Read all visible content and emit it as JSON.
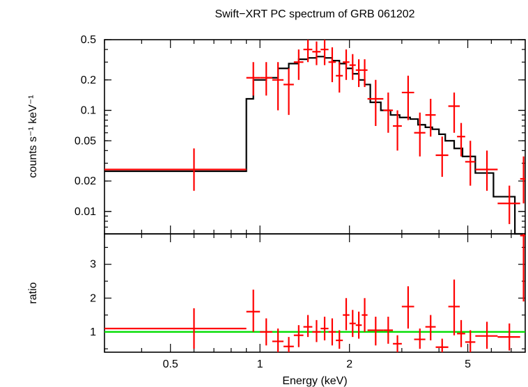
{
  "chart_data": [
    {
      "type": "scatter",
      "title": "Swift−XRT PC spectrum of GRB 061202",
      "ylabel": "counts s⁻¹ keV⁻¹",
      "xlabel": "",
      "x_scale": "log",
      "y_scale": "log",
      "xlim": [
        0.3,
        7.8
      ],
      "ylim": [
        0.006,
        0.5
      ],
      "y_ticks": [
        {
          "v": 0.01,
          "label": "0.01"
        },
        {
          "v": 0.02,
          "label": "0.02"
        },
        {
          "v": 0.05,
          "label": "0.05"
        },
        {
          "v": 0.1,
          "label": "0.1"
        },
        {
          "v": 0.2,
          "label": "0.2"
        },
        {
          "v": 0.5,
          "label": "0.5"
        }
      ],
      "data": {
        "name": "",
        "color": "#ff0000",
        "points": [
          {
            "x": 0.6,
            "xlo": 0.3,
            "xhi": 0.9,
            "y": 0.026,
            "ylo": 0.016,
            "yhi": 0.042
          },
          {
            "x": 0.95,
            "xlo": 0.9,
            "xhi": 1.0,
            "y": 0.21,
            "ylo": 0.14,
            "yhi": 0.3
          },
          {
            "x": 1.05,
            "xlo": 1.0,
            "xhi": 1.1,
            "y": 0.21,
            "ylo": 0.14,
            "yhi": 0.3
          },
          {
            "x": 1.15,
            "xlo": 1.1,
            "xhi": 1.2,
            "y": 0.2,
            "ylo": 0.1,
            "yhi": 0.3
          },
          {
            "x": 1.25,
            "xlo": 1.2,
            "xhi": 1.3,
            "y": 0.18,
            "ylo": 0.09,
            "yhi": 0.26
          },
          {
            "x": 1.35,
            "xlo": 1.3,
            "xhi": 1.4,
            "y": 0.3,
            "ylo": 0.2,
            "yhi": 0.4
          },
          {
            "x": 1.45,
            "xlo": 1.4,
            "xhi": 1.5,
            "y": 0.4,
            "ylo": 0.3,
            "yhi": 0.5
          },
          {
            "x": 1.55,
            "xlo": 1.5,
            "xhi": 1.6,
            "y": 0.38,
            "ylo": 0.28,
            "yhi": 0.48
          },
          {
            "x": 1.65,
            "xlo": 1.6,
            "xhi": 1.7,
            "y": 0.4,
            "ylo": 0.28,
            "yhi": 0.5
          },
          {
            "x": 1.75,
            "xlo": 1.7,
            "xhi": 1.8,
            "y": 0.3,
            "ylo": 0.19,
            "yhi": 0.42
          },
          {
            "x": 1.85,
            "xlo": 1.8,
            "xhi": 1.9,
            "y": 0.22,
            "ylo": 0.15,
            "yhi": 0.3
          },
          {
            "x": 1.95,
            "xlo": 1.9,
            "xhi": 2.0,
            "y": 0.3,
            "ylo": 0.2,
            "yhi": 0.4
          },
          {
            "x": 2.05,
            "xlo": 2.0,
            "xhi": 2.1,
            "y": 0.28,
            "ylo": 0.2,
            "yhi": 0.36
          },
          {
            "x": 2.15,
            "xlo": 2.1,
            "xhi": 2.2,
            "y": 0.25,
            "ylo": 0.17,
            "yhi": 0.32
          },
          {
            "x": 2.25,
            "xlo": 2.2,
            "xhi": 2.3,
            "y": 0.25,
            "ylo": 0.17,
            "yhi": 0.32
          },
          {
            "x": 2.45,
            "xlo": 2.3,
            "xhi": 2.6,
            "y": 0.13,
            "ylo": 0.07,
            "yhi": 0.2
          },
          {
            "x": 2.7,
            "xlo": 2.6,
            "xhi": 2.8,
            "y": 0.1,
            "ylo": 0.06,
            "yhi": 0.15
          },
          {
            "x": 2.9,
            "xlo": 2.8,
            "xhi": 3.0,
            "y": 0.07,
            "ylo": 0.04,
            "yhi": 0.1
          },
          {
            "x": 3.15,
            "xlo": 3.0,
            "xhi": 3.3,
            "y": 0.15,
            "ylo": 0.08,
            "yhi": 0.22
          },
          {
            "x": 3.45,
            "xlo": 3.3,
            "xhi": 3.6,
            "y": 0.06,
            "ylo": 0.035,
            "yhi": 0.095
          },
          {
            "x": 3.75,
            "xlo": 3.6,
            "xhi": 3.9,
            "y": 0.09,
            "ylo": 0.055,
            "yhi": 0.13
          },
          {
            "x": 4.1,
            "xlo": 3.9,
            "xhi": 4.3,
            "y": 0.036,
            "ylo": 0.022,
            "yhi": 0.055
          },
          {
            "x": 4.5,
            "xlo": 4.3,
            "xhi": 4.7,
            "y": 0.11,
            "ylo": 0.06,
            "yhi": 0.15
          },
          {
            "x": 4.75,
            "xlo": 4.6,
            "xhi": 4.9,
            "y": 0.055,
            "ylo": 0.035,
            "yhi": 0.075
          },
          {
            "x": 5.1,
            "xlo": 4.9,
            "xhi": 5.3,
            "y": 0.031,
            "ylo": 0.018,
            "yhi": 0.05
          },
          {
            "x": 5.8,
            "xlo": 5.3,
            "xhi": 6.3,
            "y": 0.026,
            "ylo": 0.016,
            "yhi": 0.04
          },
          {
            "x": 6.9,
            "xlo": 6.3,
            "xhi": 7.5,
            "y": 0.012,
            "ylo": 0.0075,
            "yhi": 0.018
          },
          {
            "x": 7.7,
            "xlo": 7.5,
            "xhi": 7.8,
            "y": 0.021,
            "ylo": 0.012,
            "yhi": 0.035
          }
        ]
      },
      "model": {
        "name": "",
        "color": "#000000",
        "edges": [
          0.3,
          0.9,
          0.95,
          1.05,
          1.15,
          1.25,
          1.35,
          1.45,
          1.55,
          1.65,
          1.75,
          1.85,
          1.95,
          2.05,
          2.15,
          2.25,
          2.35,
          2.55,
          2.75,
          2.95,
          3.2,
          3.4,
          3.6,
          3.8,
          4.0,
          4.2,
          4.5,
          4.8,
          5.3,
          6.1,
          7.2,
          7.8
        ],
        "values": [
          0.025,
          0.13,
          0.2,
          0.21,
          0.26,
          0.29,
          0.32,
          0.33,
          0.34,
          0.33,
          0.31,
          0.29,
          0.26,
          0.23,
          0.2,
          0.18,
          0.12,
          0.1,
          0.09,
          0.085,
          0.082,
          0.072,
          0.068,
          0.065,
          0.058,
          0.05,
          0.042,
          0.035,
          0.024,
          0.014,
          0.005
        ]
      }
    },
    {
      "type": "scatter",
      "title": "",
      "xlabel": "Energy (keV)",
      "ylabel": "ratio",
      "x_scale": "log",
      "y_scale": "linear",
      "xlim": [
        0.3,
        7.8
      ],
      "ylim": [
        0.4,
        3.9
      ],
      "x_ticks": [
        {
          "v": 0.5,
          "label": "0.5"
        },
        {
          "v": 1,
          "label": "1"
        },
        {
          "v": 2,
          "label": "2"
        },
        {
          "v": 5,
          "label": "5"
        }
      ],
      "y_ticks": [
        {
          "v": 1,
          "label": "1"
        },
        {
          "v": 2,
          "label": "2"
        },
        {
          "v": 3,
          "label": "3"
        }
      ],
      "reference_line": {
        "y": 1.0,
        "color": "#00dd00"
      },
      "data": {
        "name": "",
        "color": "#ff0000",
        "points": [
          {
            "x": 0.6,
            "xlo": 0.3,
            "xhi": 0.9,
            "y": 1.1,
            "ylo": 0.5,
            "yhi": 1.7
          },
          {
            "x": 0.95,
            "xlo": 0.9,
            "xhi": 1.0,
            "y": 1.6,
            "ylo": 1.0,
            "yhi": 2.25
          },
          {
            "x": 1.05,
            "xlo": 1.0,
            "xhi": 1.1,
            "y": 1.0,
            "ylo": 0.6,
            "yhi": 1.4
          },
          {
            "x": 1.15,
            "xlo": 1.1,
            "xhi": 1.2,
            "y": 0.72,
            "ylo": 0.4,
            "yhi": 1.1
          },
          {
            "x": 1.25,
            "xlo": 1.2,
            "xhi": 1.3,
            "y": 0.57,
            "ylo": 0.4,
            "yhi": 0.85
          },
          {
            "x": 1.35,
            "xlo": 1.3,
            "xhi": 1.4,
            "y": 0.9,
            "ylo": 0.55,
            "yhi": 1.2
          },
          {
            "x": 1.45,
            "xlo": 1.4,
            "xhi": 1.5,
            "y": 1.15,
            "ylo": 0.85,
            "yhi": 1.5
          },
          {
            "x": 1.55,
            "xlo": 1.5,
            "xhi": 1.6,
            "y": 1.0,
            "ylo": 0.7,
            "yhi": 1.35
          },
          {
            "x": 1.65,
            "xlo": 1.6,
            "xhi": 1.7,
            "y": 1.1,
            "ylo": 0.75,
            "yhi": 1.45
          },
          {
            "x": 1.75,
            "xlo": 1.7,
            "xhi": 1.8,
            "y": 1.0,
            "ylo": 0.6,
            "yhi": 1.4
          },
          {
            "x": 1.85,
            "xlo": 1.8,
            "xhi": 1.9,
            "y": 0.75,
            "ylo": 0.5,
            "yhi": 1.05
          },
          {
            "x": 1.95,
            "xlo": 1.9,
            "xhi": 2.0,
            "y": 1.5,
            "ylo": 1.05,
            "yhi": 2.0
          },
          {
            "x": 2.05,
            "xlo": 2.0,
            "xhi": 2.1,
            "y": 1.25,
            "ylo": 0.85,
            "yhi": 1.65
          },
          {
            "x": 2.15,
            "xlo": 2.1,
            "xhi": 2.2,
            "y": 1.2,
            "ylo": 0.8,
            "yhi": 1.6
          },
          {
            "x": 2.25,
            "xlo": 2.2,
            "xhi": 2.3,
            "y": 1.5,
            "ylo": 1.0,
            "yhi": 2.0
          },
          {
            "x": 2.45,
            "xlo": 2.3,
            "xhi": 2.6,
            "y": 1.05,
            "ylo": 0.6,
            "yhi": 1.45
          },
          {
            "x": 2.7,
            "xlo": 2.6,
            "xhi": 2.8,
            "y": 1.05,
            "ylo": 0.65,
            "yhi": 1.45
          },
          {
            "x": 2.9,
            "xlo": 2.8,
            "xhi": 3.0,
            "y": 0.65,
            "ylo": 0.4,
            "yhi": 0.9
          },
          {
            "x": 3.15,
            "xlo": 3.0,
            "xhi": 3.3,
            "y": 1.75,
            "ylo": 1.1,
            "yhi": 2.35
          },
          {
            "x": 3.45,
            "xlo": 3.3,
            "xhi": 3.6,
            "y": 0.78,
            "ylo": 0.5,
            "yhi": 1.1
          },
          {
            "x": 3.75,
            "xlo": 3.6,
            "xhi": 3.9,
            "y": 1.15,
            "ylo": 0.75,
            "yhi": 1.5
          },
          {
            "x": 4.1,
            "xlo": 3.9,
            "xhi": 4.3,
            "y": 0.55,
            "ylo": 0.4,
            "yhi": 0.8
          },
          {
            "x": 4.5,
            "xlo": 4.3,
            "xhi": 4.7,
            "y": 1.75,
            "ylo": 0.9,
            "yhi": 2.55
          },
          {
            "x": 4.75,
            "xlo": 4.6,
            "xhi": 4.9,
            "y": 0.95,
            "ylo": 0.55,
            "yhi": 1.35
          },
          {
            "x": 5.1,
            "xlo": 4.9,
            "xhi": 5.3,
            "y": 0.7,
            "ylo": 0.4,
            "yhi": 1.05
          },
          {
            "x": 5.8,
            "xlo": 5.3,
            "xhi": 6.3,
            "y": 0.88,
            "ylo": 0.5,
            "yhi": 1.3
          },
          {
            "x": 6.9,
            "xlo": 6.3,
            "xhi": 7.5,
            "y": 0.85,
            "ylo": 0.45,
            "yhi": 1.25
          },
          {
            "x": 7.7,
            "xlo": 7.5,
            "xhi": 7.8,
            "y": 3.85,
            "ylo": 1.9,
            "yhi": 3.9
          }
        ]
      }
    }
  ]
}
